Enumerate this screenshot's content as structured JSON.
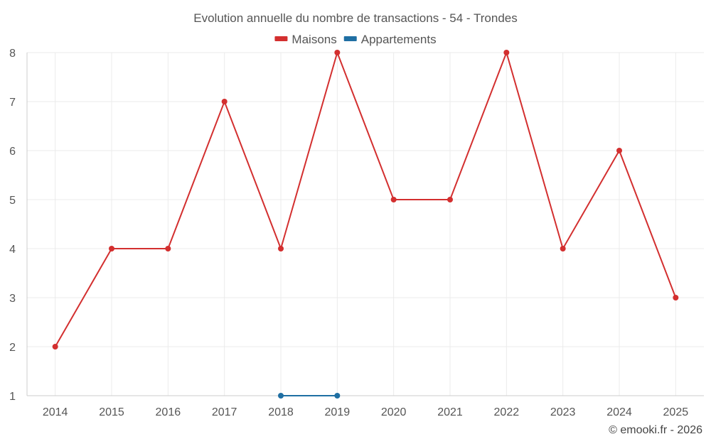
{
  "chart_data": {
    "type": "line",
    "title": "Evolution annuelle du nombre de transactions - 54 - Trondes",
    "categories": [
      "2014",
      "2015",
      "2016",
      "2017",
      "2018",
      "2019",
      "2020",
      "2021",
      "2022",
      "2023",
      "2024",
      "2025"
    ],
    "series": [
      {
        "name": "Maisons",
        "color": "#d32f2f",
        "values": [
          2,
          4,
          4,
          7,
          4,
          8,
          5,
          5,
          8,
          4,
          6,
          3
        ]
      },
      {
        "name": "Appartements",
        "color": "#1f6fa3",
        "values": [
          null,
          null,
          null,
          null,
          1,
          1,
          null,
          null,
          null,
          null,
          null,
          null
        ]
      }
    ],
    "ylim": [
      1,
      8
    ],
    "yticks": [
      1,
      2,
      3,
      4,
      5,
      6,
      7,
      8
    ],
    "xlabel": "",
    "ylabel": "",
    "grid": true,
    "legend": "top-center"
  },
  "credit": "© emooki.fr - 2026"
}
